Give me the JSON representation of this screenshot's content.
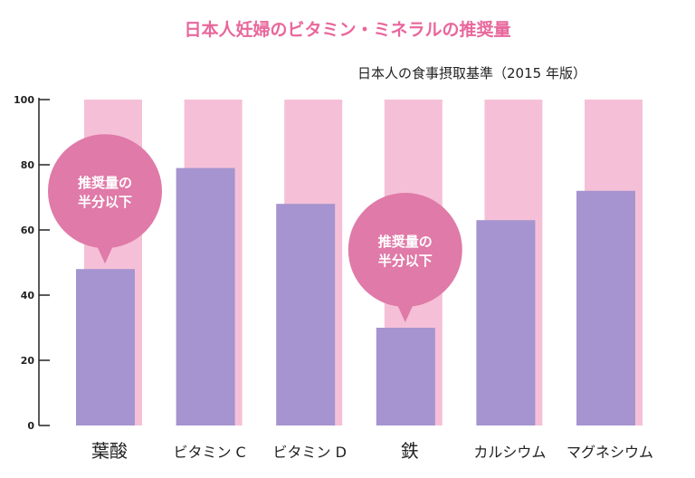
{
  "chart_data": {
    "type": "bar",
    "title": "日本人妊婦のビタミン・ミネラルの推奨量",
    "subtitle": "日本人の食事摂取基準（2015 年版）",
    "categories": [
      "葉酸",
      "ビタミン C",
      "ビタミン D",
      "鉄",
      "カルシウム",
      "マグネシウム"
    ],
    "reference_values": [
      100,
      100,
      100,
      100,
      100,
      100
    ],
    "values": [
      48,
      79,
      68,
      30,
      63,
      72
    ],
    "ylim": [
      0,
      100
    ],
    "yticks": [
      0,
      20,
      40,
      60,
      80,
      100
    ],
    "annotations": [
      {
        "category": "葉酸",
        "text_line1": "推奨量の",
        "text_line2": "半分以下"
      },
      {
        "category": "鉄",
        "text_line1": "推奨量の",
        "text_line2": "半分以下"
      }
    ],
    "colors": {
      "reference": "#f5c0d7",
      "value": "#a594cf",
      "bubble": "#e07aa8",
      "title": "#e8679c"
    }
  }
}
